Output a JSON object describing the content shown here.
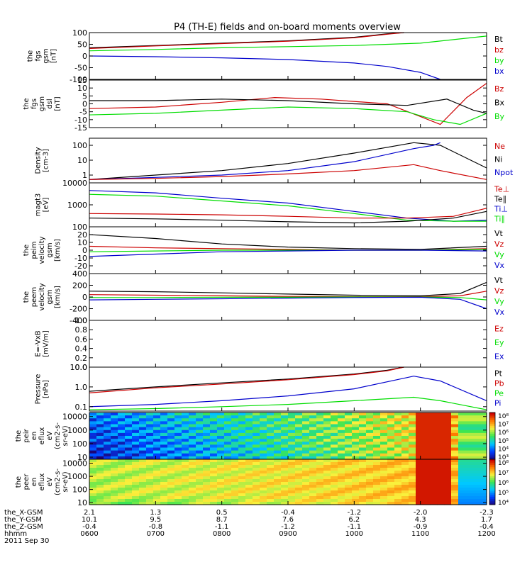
{
  "title": "P4 (TH-E) fields and on-board moments overview",
  "colors": {
    "black": "#000000",
    "red": "#cc0000",
    "green": "#00dd00",
    "blue": "#0000cc"
  },
  "chart_data": [
    {
      "type": "line",
      "id": "fgs_gsm",
      "ylabel": [
        "the",
        "fgs",
        "gsm",
        "[nT]"
      ],
      "ylim": [
        -100,
        100
      ],
      "yticks": [
        "100",
        "50",
        "0",
        "-50",
        "-100"
      ],
      "legend": [
        {
          "name": "Bt",
          "color": "#000000"
        },
        {
          "name": "bz",
          "color": "#cc0000"
        },
        {
          "name": "by",
          "color": "#00dd00"
        },
        {
          "name": "bx",
          "color": "#0000cc"
        }
      ],
      "series": [
        {
          "name": "Bt",
          "color": "#000000",
          "x": [
            6.0,
            7.0,
            8.0,
            9.0,
            10.0,
            10.5,
            10.75
          ],
          "y": [
            35,
            45,
            55,
            65,
            80,
            95,
            100
          ]
        },
        {
          "name": "bz",
          "color": "#cc0000",
          "x": [
            6.0,
            7.0,
            8.0,
            9.0,
            10.0,
            10.5,
            10.75
          ],
          "y": [
            32,
            43,
            53,
            63,
            78,
            93,
            100
          ]
        },
        {
          "name": "by",
          "color": "#00dd00",
          "x": [
            6.0,
            7.0,
            8.0,
            9.0,
            10.0,
            11.0,
            11.5,
            12.0
          ],
          "y": [
            22,
            28,
            35,
            40,
            45,
            55,
            70,
            85
          ]
        },
        {
          "name": "bx",
          "color": "#0000cc",
          "x": [
            6.0,
            7.0,
            8.0,
            9.0,
            10.0,
            10.5,
            11.0,
            11.3
          ],
          "y": [
            0,
            -3,
            -8,
            -15,
            -30,
            -45,
            -70,
            -100
          ]
        }
      ]
    },
    {
      "type": "line",
      "id": "fgs_dsl",
      "ylabel": [
        "the",
        "fgs",
        "gsm",
        "dsl",
        "[nT]"
      ],
      "ylim": [
        -15,
        15
      ],
      "yticks": [
        "15",
        "10",
        "5",
        "0",
        "-5",
        "-10",
        "-15"
      ],
      "legend": [
        {
          "name": "Bz",
          "color": "#cc0000"
        },
        {
          "name": "Bx",
          "color": "#000000"
        },
        {
          "name": "By",
          "color": "#00dd00"
        }
      ],
      "series": [
        {
          "name": "Bz",
          "color": "#cc0000",
          "x": [
            6.0,
            7.0,
            8.0,
            8.8,
            9.5,
            10.5,
            11.0,
            11.3,
            11.7,
            12.0
          ],
          "y": [
            -3,
            -2,
            1,
            4,
            3,
            0,
            -8,
            -13,
            4,
            13
          ]
        },
        {
          "name": "Bx",
          "color": "#000000",
          "x": [
            6.0,
            7.0,
            8.0,
            9.0,
            10.0,
            10.8,
            11.4,
            11.8,
            12.0
          ],
          "y": [
            2,
            2,
            3,
            2,
            0,
            -1,
            3,
            -4,
            -6
          ]
        },
        {
          "name": "By",
          "color": "#00dd00",
          "x": [
            6.0,
            7.0,
            8.0,
            9.0,
            10.0,
            10.8,
            11.2,
            11.6,
            12.0
          ],
          "y": [
            -7,
            -6,
            -4,
            -2,
            -3,
            -5,
            -10,
            -13,
            -6
          ]
        }
      ]
    },
    {
      "type": "line",
      "id": "density",
      "ylog": true,
      "ylabel": [
        "Density",
        "[cm-3]"
      ],
      "ylim": [
        0.3,
        300
      ],
      "yticks": [
        "100",
        "10",
        "1"
      ],
      "legend": [
        {
          "name": "Ne",
          "color": "#cc0000"
        },
        {
          "name": "Ni",
          "color": "#000000"
        },
        {
          "name": "Npot",
          "color": "#0000cc"
        }
      ],
      "series": [
        {
          "name": "Ni",
          "color": "#000000",
          "x": [
            6.0,
            7.0,
            8.0,
            9.0,
            10.0,
            10.9,
            11.3,
            12.0
          ],
          "y": [
            0.5,
            1.0,
            2.0,
            6.0,
            30,
            150,
            100,
            3
          ]
        },
        {
          "name": "Npot",
          "color": "#0000cc",
          "x": [
            6.0,
            7.0,
            8.0,
            9.0,
            10.0,
            10.9,
            11.2,
            11.3
          ],
          "y": [
            0.5,
            0.7,
            1.0,
            2.0,
            8.0,
            60,
            100,
            150
          ]
        },
        {
          "name": "Ne",
          "color": "#cc0000",
          "x": [
            6.0,
            7.0,
            8.0,
            9.0,
            10.0,
            10.9,
            11.3,
            12.0
          ],
          "y": [
            0.5,
            0.6,
            0.8,
            1.2,
            2.0,
            5.0,
            2.0,
            0.5
          ]
        }
      ]
    },
    {
      "type": "line",
      "id": "temperature",
      "ylog": true,
      "ylabel": [
        "magt3",
        "[eV]"
      ],
      "ylim": [
        100,
        10000
      ],
      "yticks": [
        "10000",
        "1000",
        "100"
      ],
      "legend": [
        {
          "name": "Te⊥",
          "color": "#cc0000"
        },
        {
          "name": "Te∥",
          "color": "#000000"
        },
        {
          "name": "Ti⊥",
          "color": "#0000cc"
        },
        {
          "name": "Ti∥",
          "color": "#00dd00"
        }
      ],
      "series": [
        {
          "name": "Ti⊥",
          "color": "#0000cc",
          "x": [
            6.0,
            7.0,
            8.0,
            9.0,
            10.0,
            10.8,
            11.5,
            12.0
          ],
          "y": [
            4500,
            3500,
            2000,
            1200,
            500,
            250,
            180,
            200
          ]
        },
        {
          "name": "Ti∥",
          "color": "#00dd00",
          "x": [
            6.0,
            7.0,
            8.0,
            9.0,
            10.0,
            10.8,
            11.5,
            12.0
          ],
          "y": [
            3000,
            2500,
            1500,
            900,
            400,
            200,
            180,
            180
          ]
        },
        {
          "name": "Te⊥",
          "color": "#cc0000",
          "x": [
            6.0,
            7.0,
            8.0,
            9.0,
            10.0,
            10.8,
            11.5,
            12.0
          ],
          "y": [
            400,
            380,
            350,
            300,
            250,
            250,
            300,
            700
          ]
        },
        {
          "name": "Te∥",
          "color": "#000000",
          "x": [
            6.0,
            7.0,
            8.0,
            9.0,
            10.0,
            10.8,
            11.5,
            12.0
          ],
          "y": [
            250,
            230,
            200,
            170,
            150,
            180,
            250,
            500
          ]
        }
      ]
    },
    {
      "type": "line",
      "id": "peim_velocity",
      "ylabel": [
        "the",
        "peim",
        "velocity",
        "gsm",
        "[km/s]"
      ],
      "ylim": [
        -30,
        30
      ],
      "yticks": [
        "20",
        "10",
        "0",
        "-10",
        "-20"
      ],
      "legend": [
        {
          "name": "Vt",
          "color": "#000000"
        },
        {
          "name": "Vz",
          "color": "#cc0000"
        },
        {
          "name": "Vy",
          "color": "#00dd00"
        },
        {
          "name": "Vx",
          "color": "#0000cc"
        }
      ],
      "series": [
        {
          "name": "Vt",
          "color": "#000000",
          "x": [
            6.0,
            7.0,
            8.0,
            9.0,
            10.0,
            11.0,
            12.0
          ],
          "y": [
            20,
            15,
            8,
            4,
            2,
            1,
            5
          ]
        },
        {
          "name": "Vz",
          "color": "#cc0000",
          "x": [
            6.0,
            7.0,
            8.0,
            9.0,
            10.0,
            11.0,
            12.0
          ],
          "y": [
            5,
            3,
            2,
            1,
            0,
            0,
            2
          ]
        },
        {
          "name": "Vy",
          "color": "#00dd00",
          "x": [
            6.0,
            7.0,
            8.0,
            9.0,
            10.0,
            11.0,
            12.0
          ],
          "y": [
            -2,
            -1,
            0,
            0,
            0,
            0,
            1
          ]
        },
        {
          "name": "Vx",
          "color": "#0000cc",
          "x": [
            6.0,
            7.0,
            8.0,
            9.0,
            10.0,
            11.0,
            12.0
          ],
          "y": [
            -8,
            -5,
            -2,
            -1,
            0,
            0,
            -1
          ]
        }
      ]
    },
    {
      "type": "line",
      "id": "peem_velocity",
      "ylabel": [
        "the",
        "peem",
        "velocity",
        "gsm",
        "[km/s]"
      ],
      "ylim": [
        -400,
        400
      ],
      "yticks": [
        "400",
        "200",
        "0",
        "-200",
        "-400"
      ],
      "legend": [
        {
          "name": "Vt",
          "color": "#000000"
        },
        {
          "name": "Vz",
          "color": "#cc0000"
        },
        {
          "name": "Vy",
          "color": "#00dd00"
        },
        {
          "name": "Vx",
          "color": "#0000cc"
        }
      ],
      "series": [
        {
          "name": "Vt",
          "color": "#000000",
          "x": [
            6.0,
            7.0,
            8.0,
            9.0,
            10.0,
            11.0,
            11.6,
            12.0
          ],
          "y": [
            100,
            90,
            70,
            50,
            30,
            20,
            60,
            250
          ]
        },
        {
          "name": "Vz",
          "color": "#cc0000",
          "x": [
            6.0,
            7.0,
            8.0,
            9.0,
            10.0,
            11.0,
            11.6,
            12.0
          ],
          "y": [
            40,
            30,
            20,
            10,
            5,
            5,
            20,
            100
          ]
        },
        {
          "name": "Vy",
          "color": "#00dd00",
          "x": [
            6.0,
            7.0,
            8.0,
            9.0,
            10.0,
            11.0,
            11.6,
            12.0
          ],
          "y": [
            -10,
            -10,
            -5,
            -5,
            0,
            0,
            -10,
            -50
          ]
        },
        {
          "name": "Vx",
          "color": "#0000cc",
          "x": [
            6.0,
            7.0,
            8.0,
            9.0,
            10.0,
            11.0,
            11.6,
            12.0
          ],
          "y": [
            -50,
            -40,
            -30,
            -20,
            -10,
            -5,
            -40,
            -200
          ]
        }
      ]
    },
    {
      "type": "line",
      "id": "e_field",
      "ylabel": [
        "E=-VxB",
        "[mV/m]"
      ],
      "ylim": [
        0,
        1
      ],
      "yticks": [
        "1.0",
        "0.8",
        "0.6",
        "0.4",
        "0.2",
        "0.0"
      ],
      "legend": [
        {
          "name": "Ez",
          "color": "#cc0000"
        },
        {
          "name": "Ey",
          "color": "#00dd00"
        },
        {
          "name": "Ex",
          "color": "#0000cc"
        }
      ],
      "series": []
    },
    {
      "type": "line",
      "id": "pressure",
      "ylog": true,
      "ylabel": [
        "Pressure",
        "[nPa]"
      ],
      "ylim": [
        0.06,
        10
      ],
      "yticks": [
        "10.0",
        "1.0",
        "0.1"
      ],
      "legend": [
        {
          "name": "Pt",
          "color": "#000000"
        },
        {
          "name": "Pb",
          "color": "#cc0000"
        },
        {
          "name": "Pe",
          "color": "#00dd00"
        },
        {
          "name": "Pi",
          "color": "#0000cc"
        }
      ],
      "series": [
        {
          "name": "Pt",
          "color": "#000000",
          "x": [
            6.0,
            7.0,
            8.0,
            9.0,
            10.0,
            10.5,
            10.75
          ],
          "y": [
            0.6,
            1.0,
            1.6,
            2.5,
            4.5,
            7.0,
            10
          ]
        },
        {
          "name": "Pb",
          "color": "#cc0000",
          "x": [
            6.0,
            7.0,
            8.0,
            9.0,
            10.0,
            10.5,
            10.75
          ],
          "y": [
            0.5,
            0.9,
            1.4,
            2.3,
            4.2,
            6.5,
            10
          ]
        },
        {
          "name": "Pi",
          "color": "#0000cc",
          "x": [
            6.0,
            7.0,
            8.0,
            9.0,
            10.0,
            10.9,
            11.3,
            12.0
          ],
          "y": [
            0.1,
            0.13,
            0.2,
            0.35,
            0.8,
            3.5,
            2.0,
            0.2
          ]
        },
        {
          "name": "Pe",
          "color": "#00dd00",
          "x": [
            6.0,
            7.0,
            8.0,
            9.0,
            10.0,
            10.9,
            11.3,
            12.0
          ],
          "y": [
            0.07,
            0.08,
            0.1,
            0.13,
            0.2,
            0.3,
            0.2,
            0.07
          ]
        }
      ]
    },
    {
      "type": "heatmap",
      "id": "peir_spectrogram",
      "ylabel": [
        "the",
        "peir",
        "en",
        "eflux",
        "eV",
        "(cm2-s-",
        "sr-eV)"
      ],
      "ylim": [
        7,
        20000
      ],
      "ylog": true,
      "yticks": [
        "10000",
        "1000",
        "100",
        "10"
      ],
      "colorbar": {
        "ticks": [
          "10⁸",
          "10⁷",
          "10⁶",
          "10⁵",
          "10⁴",
          "10³"
        ]
      }
    },
    {
      "type": "heatmap",
      "id": "peer_spectrogram",
      "ylabel": [
        "the",
        "peer",
        "en",
        "eflux",
        "eV",
        "(cm2-s-",
        "sr-eV)"
      ],
      "ylim": [
        7,
        20000
      ],
      "ylog": true,
      "yticks": [
        "10000",
        "1000",
        "100",
        "10"
      ],
      "colorbar": {
        "ticks": [
          "10⁸",
          "10⁷",
          "10⁶",
          "10⁵",
          "10⁴"
        ]
      }
    }
  ],
  "xaxis": {
    "xlim": [
      6.0,
      12.0
    ],
    "rows": [
      {
        "label": "the_X-GSM",
        "values": [
          "2.1",
          "1.3",
          "0.5",
          "-0.4",
          "-1.2",
          "-2.0",
          "-2.3"
        ]
      },
      {
        "label": "the_Y-GSM",
        "values": [
          "10.1",
          "9.5",
          "8.7",
          "7.6",
          "6.2",
          "4.3",
          "1.7"
        ]
      },
      {
        "label": "the_Z-GSM",
        "values": [
          "-0.4",
          "-0.8",
          "-1.1",
          "-1.2",
          "-1.1",
          "-0.9",
          "-0.4"
        ]
      },
      {
        "label": "hhmm",
        "values": [
          "0600",
          "0700",
          "0800",
          "0900",
          "1000",
          "1100",
          "1200"
        ]
      }
    ],
    "date": "2011 Sep 30"
  }
}
